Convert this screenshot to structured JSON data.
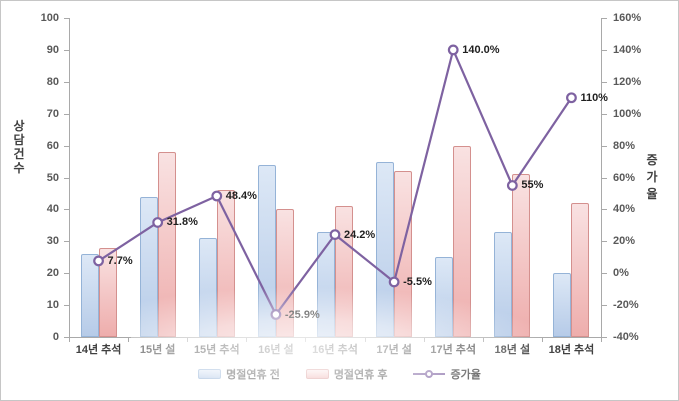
{
  "window": {
    "background": "#ffffff",
    "border_color": "#c6c6c6"
  },
  "chart_data": {
    "type": "bar",
    "subtype": "combo-bar-line",
    "categories": [
      "14년 추석",
      "15년 설",
      "15년 추석",
      "16년 설",
      "16년 추석",
      "17년 설",
      "17년 추석",
      "18년 설",
      "18년 추석"
    ],
    "series": [
      {
        "name": "명절연휴 전",
        "chart": "bar",
        "axis": "left",
        "values": [
          26,
          44,
          31,
          54,
          33,
          55,
          25,
          33,
          20
        ],
        "fill_top": "#dde8f6",
        "fill_bottom": "#b6cbe8",
        "border": "#95b3d7"
      },
      {
        "name": "명절연휴 후",
        "chart": "bar",
        "axis": "left",
        "values": [
          28,
          58,
          46,
          40,
          41,
          52,
          60,
          51,
          42
        ],
        "fill_top": "#f9e2e2",
        "fill_bottom": "#eeadac",
        "border": "#d4908e"
      },
      {
        "name": "증가율",
        "chart": "line",
        "axis": "right",
        "values": [
          7.7,
          31.8,
          48.4,
          -25.9,
          24.2,
          -5.5,
          140.0,
          55,
          110
        ],
        "labels": [
          "7.7%",
          "31.8%",
          "48.4%",
          "-25.9%",
          "24.2%",
          "-5.5%",
          "140.0%",
          "55%",
          "110%"
        ],
        "color": "#7e62a1",
        "marker": "open-circle"
      }
    ],
    "left_axis": {
      "title": "상담건수",
      "min": 0,
      "max": 100,
      "step": 10,
      "tick_labels": [
        "100",
        "90",
        "80",
        "70",
        "60",
        "50",
        "40",
        "30",
        "20",
        "10",
        "0"
      ]
    },
    "right_axis": {
      "title": "증가율",
      "min": -40,
      "max": 160,
      "step": 20,
      "tick_labels": [
        "160%",
        "140%",
        "120%",
        "100%",
        "80%",
        "60%",
        "40%",
        "20%",
        "0%",
        "-20%",
        "-40%"
      ]
    },
    "grid": "off",
    "legend_position": "bottom"
  },
  "legend": {
    "items": [
      {
        "label": "명절연휴 전",
        "type": "bar"
      },
      {
        "label": "명절연휴 후",
        "type": "bar"
      },
      {
        "label": "증가율",
        "type": "line"
      }
    ]
  },
  "colors": {
    "axis_line": "#a9a9a9",
    "tick_text": "#595959",
    "category_text": "#404040",
    "data_label_text": "#1f1f1f",
    "line_series": "#7e62a1"
  }
}
